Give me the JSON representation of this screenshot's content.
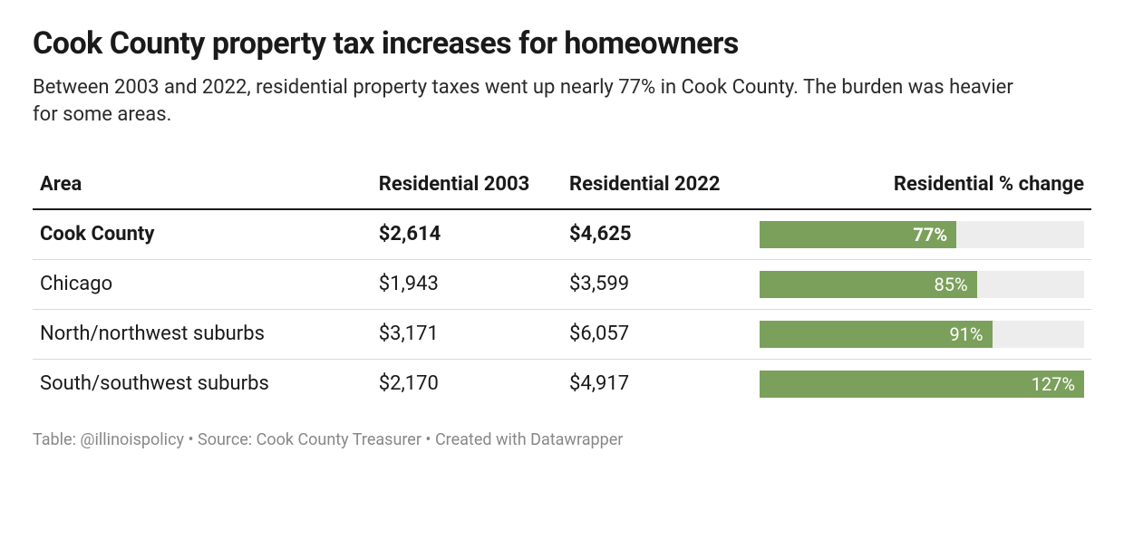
{
  "title": "Cook County property tax increases for homeowners",
  "subtitle": "Between 2003 and 2022, residential property taxes went up nearly 77% in Cook County. The burden was heavier for some areas.",
  "columns": {
    "area": "Area",
    "res2003": "Residential 2003",
    "res2022": "Residential 2022",
    "pctchange": "Residential % change"
  },
  "bar": {
    "track_color": "#ededed",
    "fill_color": "#7ba05b",
    "text_color": "#ffffff",
    "max_value": 127
  },
  "rows": [
    {
      "area": "Cook County",
      "res2003": "$2,614",
      "res2022": "$4,625",
      "pct": 77,
      "pct_label": "77%",
      "bold": true
    },
    {
      "area": "Chicago",
      "res2003": "$1,943",
      "res2022": "$3,599",
      "pct": 85,
      "pct_label": "85%",
      "bold": false
    },
    {
      "area": "North/northwest suburbs",
      "res2003": "$3,171",
      "res2022": "$6,057",
      "pct": 91,
      "pct_label": "91%",
      "bold": false
    },
    {
      "area": "South/southwest suburbs",
      "res2003": "$2,170",
      "res2022": "$4,917",
      "pct": 127,
      "pct_label": "127%",
      "bold": false
    }
  ],
  "footer": "Table: @illinoispolicy • Source: Cook County Treasurer • Created with Datawrapper",
  "typography": {
    "title_fontsize": 34,
    "subtitle_fontsize": 22,
    "table_fontsize": 22,
    "footer_fontsize": 18,
    "font_family": "system-ui"
  },
  "colors": {
    "background": "#ffffff",
    "text": "#1a1a1a",
    "footer_text": "#888888",
    "row_border": "#d9d9d9",
    "header_border": "#1a1a1a"
  }
}
